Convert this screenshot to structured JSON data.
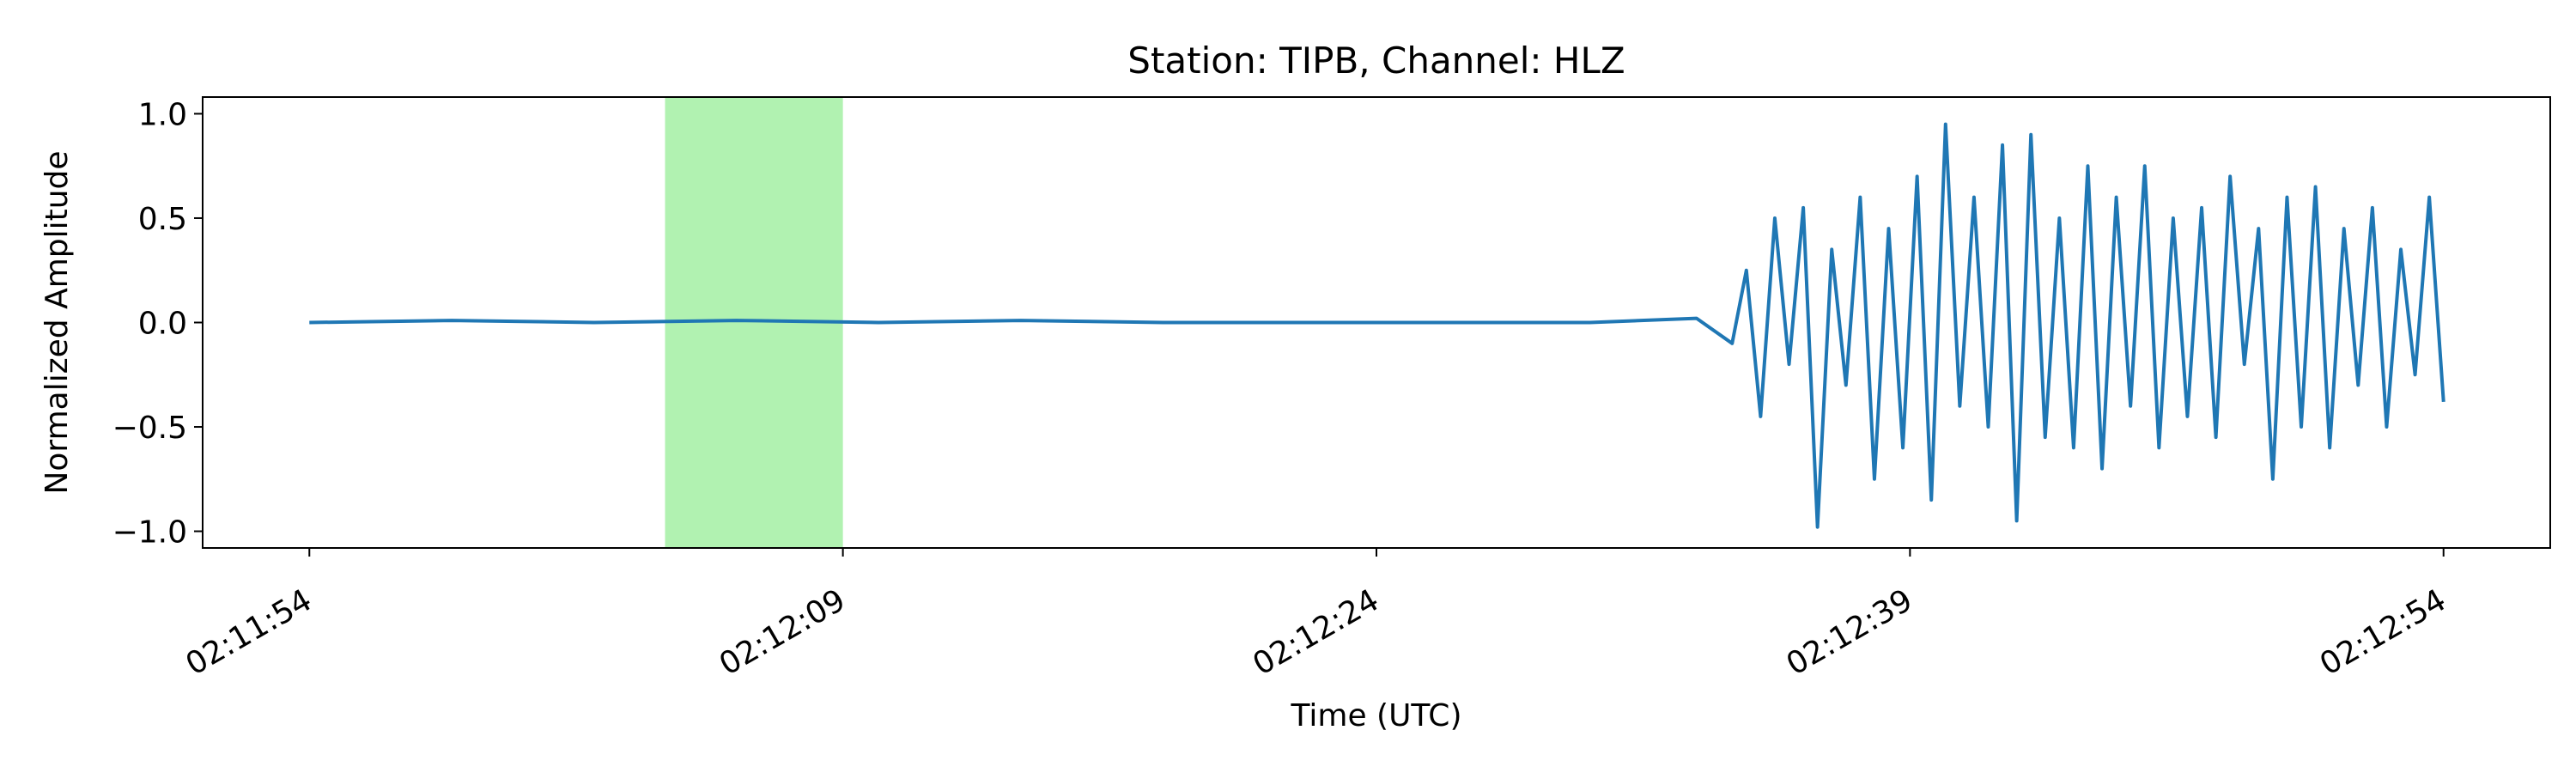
{
  "chart_data": {
    "type": "line",
    "title": "Station: TIPB, Channel: HLZ",
    "xlabel": "Time (UTC)",
    "ylabel": "Normalized Amplitude",
    "x_unit": "time (UTC)",
    "xlim": [
      "02:11:51",
      "02:12:57"
    ],
    "ylim": [
      -1.08,
      1.08
    ],
    "xticks": [
      "02:11:54",
      "02:12:09",
      "02:12:24",
      "02:12:39",
      "02:12:54"
    ],
    "yticks": [
      "1.0",
      "0.5",
      "0.0",
      "−0.5",
      "−1.0"
    ],
    "ytick_values": [
      1.0,
      0.5,
      0.0,
      -0.5,
      -1.0
    ],
    "grid": false,
    "highlight": {
      "start": "02:12:04",
      "end": "02:12:09",
      "color": "#b1f2b1"
    },
    "series": [
      {
        "color": "#1f77b4",
        "x": [
          "02:11:54",
          "02:11:58",
          "02:12:02",
          "02:12:06",
          "02:12:10",
          "02:12:14",
          "02:12:18",
          "02:12:22",
          "02:12:26",
          "02:12:30",
          "02:12:33",
          "02:12:34",
          "02:12:34.4",
          "02:12:34.8",
          "02:12:35.2",
          "02:12:35.6",
          "02:12:36",
          "02:12:36.4",
          "02:12:36.8",
          "02:12:37.2",
          "02:12:37.6",
          "02:12:38",
          "02:12:38.4",
          "02:12:38.8",
          "02:12:39.2",
          "02:12:39.6",
          "02:12:40",
          "02:12:40.4",
          "02:12:40.8",
          "02:12:41.2",
          "02:12:41.6",
          "02:12:42",
          "02:12:42.4",
          "02:12:42.8",
          "02:12:43.2",
          "02:12:43.6",
          "02:12:44",
          "02:12:44.4",
          "02:12:44.8",
          "02:12:45.2",
          "02:12:45.6",
          "02:12:46",
          "02:12:46.4",
          "02:12:46.8",
          "02:12:47.2",
          "02:12:47.6",
          "02:12:48",
          "02:12:48.4",
          "02:12:48.8",
          "02:12:49.2",
          "02:12:49.6",
          "02:12:50",
          "02:12:50.4",
          "02:12:50.8",
          "02:12:51.2",
          "02:12:51.6",
          "02:12:52",
          "02:12:52.4",
          "02:12:52.8",
          "02:12:53.2",
          "02:12:53.6",
          "02:12:54"
        ],
        "y": [
          0.0,
          0.01,
          0.0,
          0.01,
          0.0,
          0.01,
          0.0,
          0.0,
          0.0,
          0.0,
          0.02,
          -0.1,
          0.25,
          -0.45,
          0.5,
          -0.2,
          0.55,
          -0.98,
          0.35,
          -0.3,
          0.6,
          -0.75,
          0.45,
          -0.6,
          0.7,
          -0.85,
          0.95,
          -0.4,
          0.6,
          -0.5,
          0.85,
          -0.95,
          0.9,
          -0.55,
          0.5,
          -0.6,
          0.75,
          -0.7,
          0.6,
          -0.4,
          0.75,
          -0.6,
          0.5,
          -0.45,
          0.55,
          -0.55,
          0.7,
          -0.2,
          0.45,
          -0.75,
          0.6,
          -0.5,
          0.65,
          -0.6,
          0.45,
          -0.3,
          0.55,
          -0.5,
          0.35,
          -0.25,
          0.6,
          -0.38
        ]
      }
    ]
  }
}
